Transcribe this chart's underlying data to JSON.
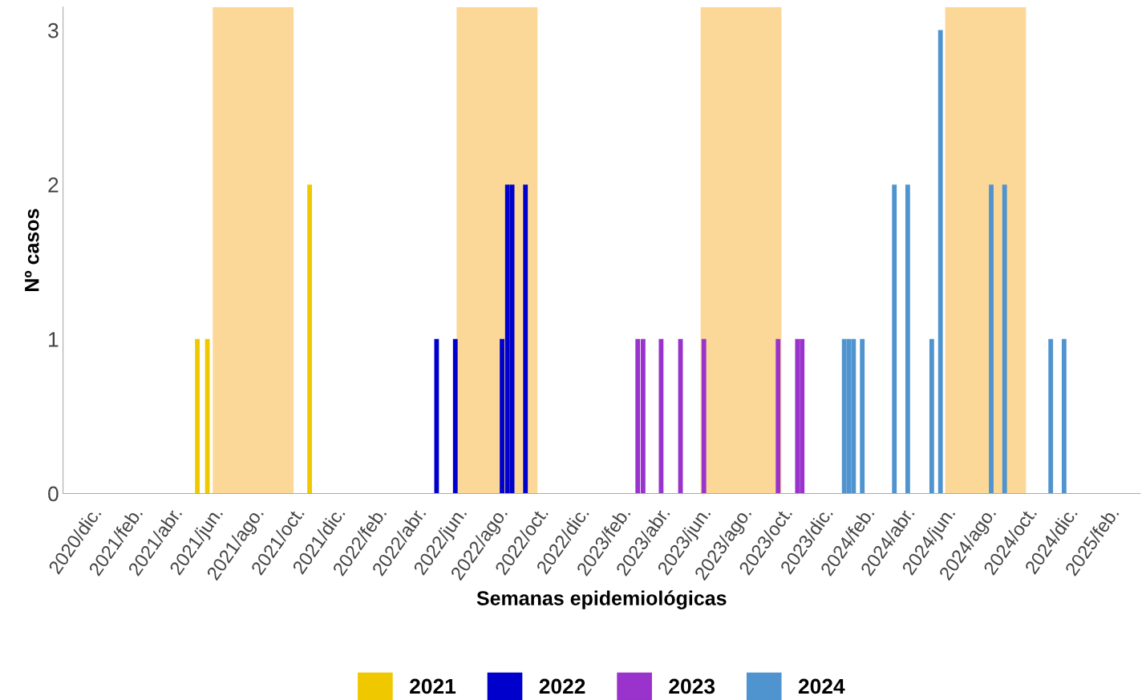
{
  "chart_data": {
    "type": "bar",
    "xlabel": "Semanas epidemiológicas",
    "ylabel": "Nº casos",
    "series": [
      {
        "name": "2021",
        "color": "#f0c800",
        "x": [
          "2021-05-09",
          "2021-05-24",
          "2021-10-24"
        ],
        "values": [
          1,
          1,
          2
        ]
      },
      {
        "name": "2022",
        "color": "#0000cc",
        "x": [
          "2022-05-02",
          "2022-05-30",
          "2022-08-08",
          "2022-08-16",
          "2022-08-23",
          "2022-09-12"
        ],
        "values": [
          1,
          1,
          1,
          2,
          2,
          2
        ]
      },
      {
        "name": "2023",
        "color": "#9933cc",
        "x": [
          "2023-02-27",
          "2023-03-07",
          "2023-04-03",
          "2023-05-02",
          "2023-06-06",
          "2023-09-25",
          "2023-10-24",
          "2023-10-31"
        ],
        "values": [
          1,
          1,
          1,
          1,
          1,
          1,
          1,
          1
        ]
      },
      {
        "name": "2024",
        "color": "#5094cf",
        "x": [
          "2024-01-02",
          "2024-01-09",
          "2024-01-16",
          "2024-01-29",
          "2024-03-17",
          "2024-04-06",
          "2024-05-12",
          "2024-05-25",
          "2024-08-09",
          "2024-08-29",
          "2024-11-06",
          "2024-11-26"
        ],
        "values": [
          1,
          1,
          1,
          1,
          2,
          2,
          1,
          3,
          2,
          2,
          1,
          1
        ]
      }
    ],
    "bands": [
      {
        "axis": "x",
        "from": "2021-06-01",
        "to": "2021-09-30",
        "color": "#fcd898"
      },
      {
        "axis": "x",
        "from": "2022-06-01",
        "to": "2022-09-30",
        "color": "#fcd898"
      },
      {
        "axis": "x",
        "from": "2023-06-01",
        "to": "2023-09-30",
        "color": "#fcd898"
      },
      {
        "axis": "x",
        "from": "2024-06-01",
        "to": "2024-09-30",
        "color": "#fcd898"
      }
    ],
    "xlim": [
      "2020-10-20",
      "2025-03-20"
    ],
    "xticks": [
      {
        "value": "2020-12-01",
        "label": "2020/dic."
      },
      {
        "value": "2021-02-01",
        "label": "2021/feb."
      },
      {
        "value": "2021-04-01",
        "label": "2021/abr."
      },
      {
        "value": "2021-06-01",
        "label": "2021/jun."
      },
      {
        "value": "2021-08-01",
        "label": "2021/ago."
      },
      {
        "value": "2021-10-01",
        "label": "2021/oct."
      },
      {
        "value": "2021-12-01",
        "label": "2021/dic."
      },
      {
        "value": "2022-02-01",
        "label": "2022/feb."
      },
      {
        "value": "2022-04-01",
        "label": "2022/abr."
      },
      {
        "value": "2022-06-01",
        "label": "2022/jun."
      },
      {
        "value": "2022-08-01",
        "label": "2022/ago."
      },
      {
        "value": "2022-10-01",
        "label": "2022/oct."
      },
      {
        "value": "2022-12-01",
        "label": "2022/dic."
      },
      {
        "value": "2023-02-01",
        "label": "2023/feb."
      },
      {
        "value": "2023-04-01",
        "label": "2023/abr."
      },
      {
        "value": "2023-06-01",
        "label": "2023/jun."
      },
      {
        "value": "2023-08-01",
        "label": "2023/ago."
      },
      {
        "value": "2023-10-01",
        "label": "2023/oct."
      },
      {
        "value": "2023-12-01",
        "label": "2023/dic."
      },
      {
        "value": "2024-02-01",
        "label": "2024/feb."
      },
      {
        "value": "2024-04-01",
        "label": "2024/abr."
      },
      {
        "value": "2024-06-01",
        "label": "2024/jun."
      },
      {
        "value": "2024-08-01",
        "label": "2024/ago."
      },
      {
        "value": "2024-10-01",
        "label": "2024/oct."
      },
      {
        "value": "2024-12-01",
        "label": "2024/dic."
      },
      {
        "value": "2025-02-01",
        "label": "2025/feb."
      }
    ],
    "ylim": [
      0,
      3.15
    ],
    "yticks": [
      0,
      1,
      2,
      3
    ],
    "grid": false,
    "legend": "bottom"
  }
}
